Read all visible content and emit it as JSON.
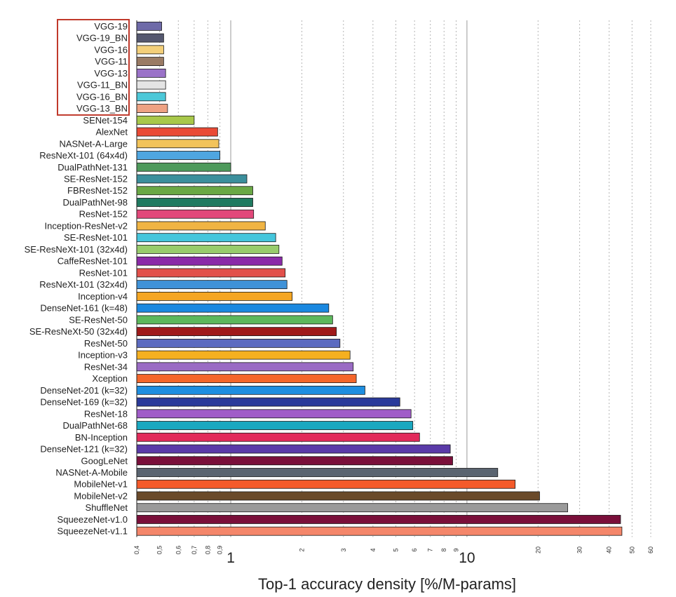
{
  "chart_data": {
    "type": "bar",
    "orientation": "horizontal",
    "xlabel": "Top-1 accuracy density [%/M-params]",
    "x_scale": "log",
    "xlim": [
      0.4,
      60
    ],
    "major_ticks": [
      {
        "value": 1,
        "label": "1"
      },
      {
        "value": 10,
        "label": "10"
      }
    ],
    "minor_ticks": [
      {
        "value": 0.4,
        "label": "0,4"
      },
      {
        "value": 0.5,
        "label": "0,5"
      },
      {
        "value": 0.6,
        "label": "0,6"
      },
      {
        "value": 0.7,
        "label": "0,7"
      },
      {
        "value": 0.8,
        "label": "0,8"
      },
      {
        "value": 0.9,
        "label": "0,9"
      },
      {
        "value": 2,
        "label": "2"
      },
      {
        "value": 3,
        "label": "3"
      },
      {
        "value": 4,
        "label": "4"
      },
      {
        "value": 5,
        "label": "5"
      },
      {
        "value": 6,
        "label": "6"
      },
      {
        "value": 7,
        "label": "7"
      },
      {
        "value": 8,
        "label": "8"
      },
      {
        "value": 9,
        "label": "9"
      },
      {
        "value": 20,
        "label": "20"
      },
      {
        "value": 30,
        "label": "30"
      },
      {
        "value": 40,
        "label": "40"
      },
      {
        "value": 50,
        "label": "50"
      },
      {
        "value": 60,
        "label": "60"
      }
    ],
    "grid": "vertical dotted",
    "highlight_box_categories": [
      "VGG-19",
      "VGG-19_BN",
      "VGG-16",
      "VGG-11",
      "VGG-13",
      "VGG-11_BN",
      "VGG-16_BN",
      "VGG-13_BN"
    ],
    "highlight_color": "#c0392b",
    "bars": [
      {
        "label": "VGG-19",
        "value": 0.51,
        "color": "#6e6aa8"
      },
      {
        "label": "VGG-19_BN",
        "value": 0.52,
        "color": "#55586f"
      },
      {
        "label": "VGG-16",
        "value": 0.52,
        "color": "#f3cf7a"
      },
      {
        "label": "VGG-11",
        "value": 0.52,
        "color": "#9a7b64"
      },
      {
        "label": "VGG-13",
        "value": 0.53,
        "color": "#9a72c8"
      },
      {
        "label": "VGG-11_BN",
        "value": 0.53,
        "color": "#e4e4e4"
      },
      {
        "label": "VGG-16_BN",
        "value": 0.53,
        "color": "#4cc8d8"
      },
      {
        "label": "VGG-13_BN",
        "value": 0.54,
        "color": "#eea283"
      },
      {
        "label": "SENet-154",
        "value": 0.7,
        "color": "#a8c84a"
      },
      {
        "label": "AlexNet",
        "value": 0.88,
        "color": "#ea4a35"
      },
      {
        "label": "NASNet-A-Large",
        "value": 0.89,
        "color": "#f2c35a"
      },
      {
        "label": "ResNeXt-101 (64x4d)",
        "value": 0.9,
        "color": "#4fa6e0"
      },
      {
        "label": "DualPathNet-131",
        "value": 1.0,
        "color": "#4e9a5b"
      },
      {
        "label": "SE-ResNet-152",
        "value": 1.17,
        "color": "#3b8f9c"
      },
      {
        "label": "FBResNet-152",
        "value": 1.24,
        "color": "#6aa845"
      },
      {
        "label": "DualPathNet-98",
        "value": 1.24,
        "color": "#1f7a60"
      },
      {
        "label": "ResNet-152",
        "value": 1.25,
        "color": "#e2487a"
      },
      {
        "label": "Inception-ResNet-v2",
        "value": 1.4,
        "color": "#f0b443"
      },
      {
        "label": "SE-ResNet-101",
        "value": 1.55,
        "color": "#45c6dc"
      },
      {
        "label": "SE-ResNeXt-101 (32x4d)",
        "value": 1.6,
        "color": "#98cc6c"
      },
      {
        "label": "CaffeResNet-101",
        "value": 1.65,
        "color": "#8a2aa8"
      },
      {
        "label": "ResNet-101",
        "value": 1.7,
        "color": "#e2504a"
      },
      {
        "label": "ResNeXt-101 (32x4d)",
        "value": 1.73,
        "color": "#3f92d8"
      },
      {
        "label": "Inception-v4",
        "value": 1.82,
        "color": "#f5a623"
      },
      {
        "label": "DenseNet-161 (k=48)",
        "value": 2.6,
        "color": "#1a88e0"
      },
      {
        "label": "SE-ResNet-50",
        "value": 2.7,
        "color": "#5cb85c"
      },
      {
        "label": "SE-ResNeXt-50 (32x4d)",
        "value": 2.8,
        "color": "#a01a1a"
      },
      {
        "label": "ResNet-50",
        "value": 2.9,
        "color": "#5c6bc0"
      },
      {
        "label": "Inception-v3",
        "value": 3.2,
        "color": "#f5b020"
      },
      {
        "label": "ResNet-34",
        "value": 3.3,
        "color": "#9a6bc4"
      },
      {
        "label": "Xception",
        "value": 3.4,
        "color": "#f4662a"
      },
      {
        "label": "DenseNet-201 (k=32)",
        "value": 3.7,
        "color": "#1e8ee0"
      },
      {
        "label": "DenseNet-169 (k=32)",
        "value": 5.2,
        "color": "#2a3a9a"
      },
      {
        "label": "ResNet-18",
        "value": 5.8,
        "color": "#a05cc8"
      },
      {
        "label": "DualPathNet-68",
        "value": 5.9,
        "color": "#1aa8c0"
      },
      {
        "label": "BN-Inception",
        "value": 6.3,
        "color": "#e22a5a"
      },
      {
        "label": "DenseNet-121 (k=32)",
        "value": 8.5,
        "color": "#5a3aa8"
      },
      {
        "label": "GoogLeNet",
        "value": 8.7,
        "color": "#7a0f3a"
      },
      {
        "label": "NASNet-A-Mobile",
        "value": 13.5,
        "color": "#5a6470"
      },
      {
        "label": "MobileNet-v1",
        "value": 16.0,
        "color": "#f45a2a"
      },
      {
        "label": "MobileNet-v2",
        "value": 20.3,
        "color": "#6a4a2a"
      },
      {
        "label": "ShuffleNet",
        "value": 26.7,
        "color": "#9a9a9a"
      },
      {
        "label": "SqueezeNet-v1.0",
        "value": 44.7,
        "color": "#7a0f3a"
      },
      {
        "label": "SqueezeNet-v1.1",
        "value": 45.3,
        "color": "#f4866a"
      }
    ]
  }
}
